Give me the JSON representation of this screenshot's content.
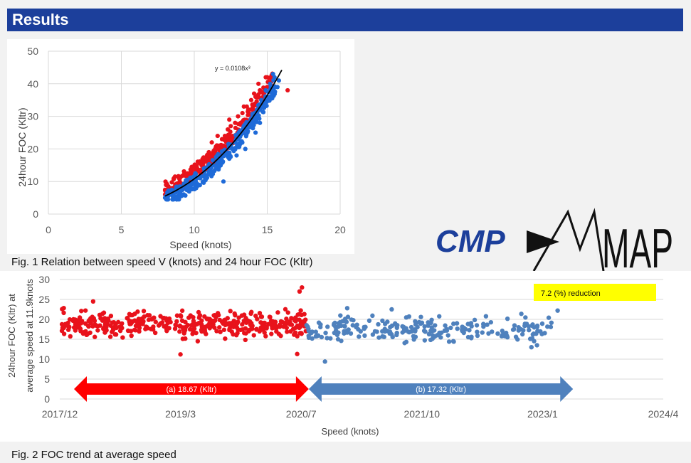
{
  "header": {
    "title": "Results"
  },
  "logo": {
    "text_left": "CMP",
    "text_right": "MAP",
    "brand_color": "#1c3f9b"
  },
  "colors": {
    "red_series": "#e8121b",
    "blue_series": "#1e6ad8",
    "blue_arrow": "#4f81bd",
    "red_arrow": "#ff0000",
    "highlight": "#ffff00"
  },
  "fig1": {
    "caption": "Fig. 1 Relation between speed V (knots) and 24 hour FOC (Kltr)",
    "chart_data": {
      "type": "scatter",
      "xlabel": "Speed (knots)",
      "ylabel": "24hour FOC (Kltr)",
      "xlim": [
        0,
        20
      ],
      "ylim": [
        0,
        50
      ],
      "xticks": [
        "0",
        "5",
        "10",
        "15",
        "20"
      ],
      "yticks": [
        "0",
        "10",
        "20",
        "30",
        "40",
        "50"
      ],
      "grid": true,
      "series": [
        {
          "color": "#e8121b",
          "points": [
            [
              8.0,
              6
            ],
            [
              8.3,
              7.5
            ],
            [
              8.6,
              7
            ],
            [
              8.9,
              8.5
            ],
            [
              9.2,
              9
            ],
            [
              9.5,
              10
            ],
            [
              9.8,
              11
            ],
            [
              10.0,
              12
            ],
            [
              10.3,
              13
            ],
            [
              10.6,
              14
            ],
            [
              10.9,
              16
            ],
            [
              11.1,
              18
            ],
            [
              11.3,
              19
            ],
            [
              11.5,
              20
            ],
            [
              11.7,
              21
            ],
            [
              11.9,
              23
            ],
            [
              12.1,
              24
            ],
            [
              12.3,
              26
            ],
            [
              12.5,
              27
            ],
            [
              12.8,
              28
            ],
            [
              13.0,
              30
            ],
            [
              13.3,
              31
            ],
            [
              13.6,
              33
            ],
            [
              13.9,
              35
            ],
            [
              14.2,
              36
            ],
            [
              14.5,
              38
            ],
            [
              14.9,
              42
            ],
            [
              15.3,
              41
            ],
            [
              16.4,
              38
            ],
            [
              10.8,
              17
            ],
            [
              11.2,
              22
            ],
            [
              12.0,
              21
            ],
            [
              12.6,
              24
            ],
            [
              13.2,
              28
            ],
            [
              9.7,
              12.5
            ],
            [
              10.5,
              15
            ],
            [
              11.6,
              24
            ],
            [
              12.4,
              29
            ],
            [
              13.7,
              32
            ],
            [
              14.4,
              40
            ],
            [
              8.5,
              8
            ],
            [
              9.0,
              10
            ],
            [
              10.2,
              14
            ],
            [
              11.0,
              19
            ],
            [
              12.2,
              22
            ],
            [
              13.4,
              33
            ],
            [
              14.1,
              37
            ],
            [
              15.0,
              42
            ]
          ]
        },
        {
          "color": "#1e6ad8",
          "points": [
            [
              8.0,
              5
            ],
            [
              8.3,
              6
            ],
            [
              8.6,
              6.5
            ],
            [
              8.9,
              7
            ],
            [
              9.2,
              7.5
            ],
            [
              9.5,
              8
            ],
            [
              9.8,
              9
            ],
            [
              10.1,
              10
            ],
            [
              10.4,
              11
            ],
            [
              10.7,
              12
            ],
            [
              11.0,
              13
            ],
            [
              11.3,
              15
            ],
            [
              11.6,
              16
            ],
            [
              11.9,
              18
            ],
            [
              12.2,
              19
            ],
            [
              12.5,
              21
            ],
            [
              12.8,
              22
            ],
            [
              13.1,
              24
            ],
            [
              13.4,
              26
            ],
            [
              13.7,
              28
            ],
            [
              14.0,
              30
            ],
            [
              14.3,
              32
            ],
            [
              14.6,
              35
            ],
            [
              14.9,
              38
            ],
            [
              15.2,
              40
            ],
            [
              15.5,
              42
            ],
            [
              15.8,
              41
            ],
            [
              15.4,
              43
            ],
            [
              12.0,
              10
            ],
            [
              13.5,
              20
            ],
            [
              14.2,
              25
            ],
            [
              12.9,
              18
            ],
            [
              11.5,
              14
            ],
            [
              10.6,
              10
            ],
            [
              9.4,
              8.5
            ],
            [
              13.0,
              23
            ],
            [
              14.5,
              28
            ],
            [
              15.0,
              36
            ],
            [
              12.4,
              17
            ],
            [
              11.8,
              15
            ],
            [
              10.9,
              12
            ],
            [
              13.8,
              27
            ],
            [
              14.7,
              33
            ],
            [
              12.6,
              20
            ],
            [
              11.2,
              13
            ],
            [
              10.0,
              9.5
            ],
            [
              13.3,
              25
            ],
            [
              15.7,
              39
            ]
          ]
        }
      ],
      "trendline": {
        "equation": "y = 0.0108x³",
        "coef": 0.0108,
        "power": 3,
        "x_from": 8,
        "x_to": 16
      }
    }
  },
  "fig2": {
    "caption": "Fig. 2 FOC trend at average speed",
    "chart_data": {
      "type": "scatter",
      "xlabel": "Speed (knots)",
      "ylabel_line1": "24hour FOC (Kltr) at",
      "ylabel_line2": "average speed at 11.9knots",
      "ylim": [
        0,
        30
      ],
      "yticks": [
        "0",
        "5",
        "10",
        "15",
        "20",
        "25",
        "30"
      ],
      "xticks": [
        "2017/12",
        "2019/3",
        "2020/7",
        "2021/10",
        "2023/1",
        "2024/4"
      ],
      "x_range_months": [
        0,
        76
      ],
      "red_end_month": 31,
      "blue_end_month": 62,
      "annotation": "7.2 (%) reduction",
      "arrows": [
        {
          "label": "(a) 18.67 (Kltr)",
          "from_month": 0,
          "to_month": 31,
          "color": "#ff0000"
        },
        {
          "label": "(b) 17.32 (Kltr)",
          "from_month": 31,
          "to_month": 65,
          "color": "#4f81bd"
        }
      ],
      "series": [
        {
          "color": "#e8121b",
          "mean": 18.67,
          "spread": 2.3,
          "count": 420,
          "outliers": [
            [
              30.5,
              28
            ],
            [
              30.2,
              27
            ],
            [
              15.2,
              11.2
            ],
            [
              29.9,
              11.3
            ],
            [
              4.2,
              24.5
            ]
          ]
        },
        {
          "color": "#4f81bd",
          "mean": 17.32,
          "spread": 2.4,
          "count": 230,
          "outliers": [
            [
              33.4,
              9.4
            ],
            [
              36.2,
              22.8
            ],
            [
              41.8,
              22.5
            ],
            [
              62.7,
              22.2
            ],
            [
              60.1,
              13.5
            ],
            [
              59.4,
              13.0
            ]
          ]
        }
      ]
    }
  }
}
